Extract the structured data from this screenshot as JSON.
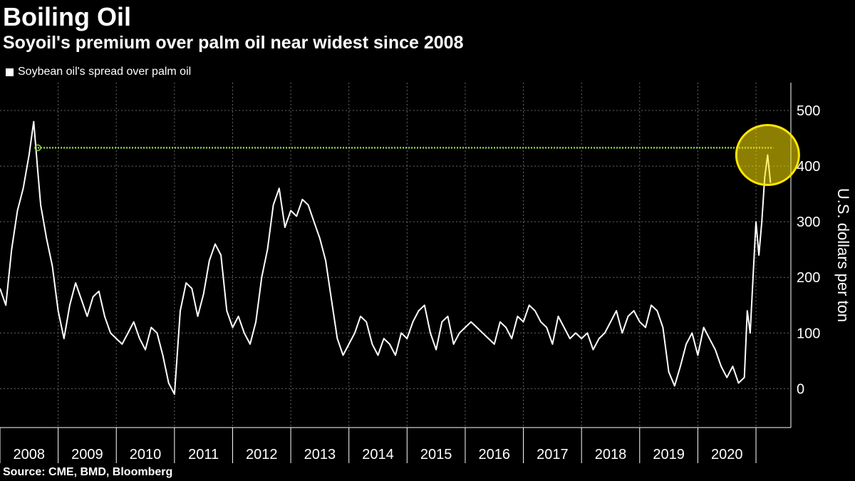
{
  "header": {
    "title": "Boiling Oil",
    "subtitle": "Soyoil's premium over palm oil near widest since 2008"
  },
  "footer": {
    "source": "Source: CME, BMD, Bloomberg"
  },
  "colors": {
    "background": "#000000",
    "line": "#ffffff",
    "reference": "#8fd14f",
    "highlight": "#ffe600",
    "grid": "#666666"
  },
  "chart_data": {
    "type": "line",
    "title": "Boiling Oil",
    "subtitle": "Soyoil's premium over palm oil near widest since 2008",
    "ylabel": "U.S. dollars per ton",
    "xlabel": "",
    "ylim": [
      -70,
      550
    ],
    "xlim": [
      2008.0,
      2021.6
    ],
    "yticks": [
      0,
      100,
      200,
      300,
      400,
      500
    ],
    "xtick_labels": [
      "2008",
      "2009",
      "2010",
      "2011",
      "2012",
      "2013",
      "2014",
      "2015",
      "2016",
      "2017",
      "2018",
      "2019",
      "2020"
    ],
    "grid": true,
    "legend_position": "top-left",
    "annotations": [
      {
        "type": "reference-line",
        "value": 433,
        "from": 2008.65,
        "to": 2021.3,
        "style": "dotted",
        "color": "#8fd14f"
      },
      {
        "type": "highlight-circle",
        "x": 2021.2,
        "y": 420,
        "color": "#ffe600"
      }
    ],
    "series": [
      {
        "name": "Soybean oil's spread over palm oil",
        "x": [
          2008.0,
          2008.1,
          2008.2,
          2008.3,
          2008.4,
          2008.5,
          2008.58,
          2008.65,
          2008.7,
          2008.8,
          2008.9,
          2009.0,
          2009.1,
          2009.2,
          2009.3,
          2009.4,
          2009.5,
          2009.6,
          2009.7,
          2009.8,
          2009.9,
          2010.0,
          2010.1,
          2010.2,
          2010.3,
          2010.4,
          2010.5,
          2010.6,
          2010.7,
          2010.8,
          2010.9,
          2011.0,
          2011.1,
          2011.2,
          2011.3,
          2011.4,
          2011.5,
          2011.6,
          2011.7,
          2011.8,
          2011.9,
          2012.0,
          2012.1,
          2012.2,
          2012.3,
          2012.4,
          2012.5,
          2012.6,
          2012.7,
          2012.8,
          2012.9,
          2013.0,
          2013.1,
          2013.2,
          2013.3,
          2013.4,
          2013.5,
          2013.6,
          2013.7,
          2013.8,
          2013.9,
          2014.0,
          2014.1,
          2014.2,
          2014.3,
          2014.4,
          2014.5,
          2014.6,
          2014.7,
          2014.8,
          2014.9,
          2015.0,
          2015.1,
          2015.2,
          2015.3,
          2015.4,
          2015.5,
          2015.6,
          2015.7,
          2015.8,
          2015.9,
          2016.0,
          2016.1,
          2016.2,
          2016.3,
          2016.4,
          2016.5,
          2016.6,
          2016.7,
          2016.8,
          2016.9,
          2017.0,
          2017.1,
          2017.2,
          2017.3,
          2017.4,
          2017.5,
          2017.6,
          2017.7,
          2017.8,
          2017.9,
          2018.0,
          2018.1,
          2018.2,
          2018.3,
          2018.4,
          2018.5,
          2018.6,
          2018.7,
          2018.8,
          2018.9,
          2019.0,
          2019.1,
          2019.2,
          2019.3,
          2019.4,
          2019.5,
          2019.6,
          2019.7,
          2019.8,
          2019.9,
          2020.0,
          2020.1,
          2020.2,
          2020.3,
          2020.4,
          2020.5,
          2020.6,
          2020.7,
          2020.8,
          2020.85,
          2020.9,
          2020.95,
          2021.0,
          2021.05,
          2021.1,
          2021.15,
          2021.2,
          2021.25
        ],
        "values": [
          180,
          150,
          250,
          320,
          360,
          420,
          480,
          390,
          330,
          270,
          220,
          140,
          90,
          150,
          190,
          160,
          130,
          165,
          175,
          130,
          100,
          90,
          80,
          100,
          120,
          90,
          70,
          110,
          100,
          60,
          10,
          -10,
          140,
          190,
          180,
          130,
          170,
          230,
          260,
          240,
          140,
          110,
          130,
          100,
          80,
          120,
          200,
          250,
          330,
          360,
          290,
          320,
          310,
          340,
          330,
          300,
          270,
          230,
          160,
          90,
          60,
          80,
          100,
          130,
          120,
          80,
          60,
          90,
          80,
          60,
          100,
          90,
          120,
          140,
          150,
          100,
          70,
          120,
          130,
          80,
          100,
          110,
          120,
          110,
          100,
          90,
          80,
          120,
          110,
          90,
          130,
          120,
          150,
          140,
          120,
          110,
          80,
          130,
          110,
          90,
          100,
          90,
          100,
          70,
          90,
          100,
          120,
          140,
          100,
          130,
          140,
          120,
          110,
          150,
          140,
          110,
          30,
          5,
          40,
          80,
          100,
          60,
          110,
          90,
          70,
          40,
          20,
          40,
          10,
          20,
          140,
          100,
          200,
          300,
          240,
          300,
          380,
          420,
          370
        ]
      }
    ]
  }
}
